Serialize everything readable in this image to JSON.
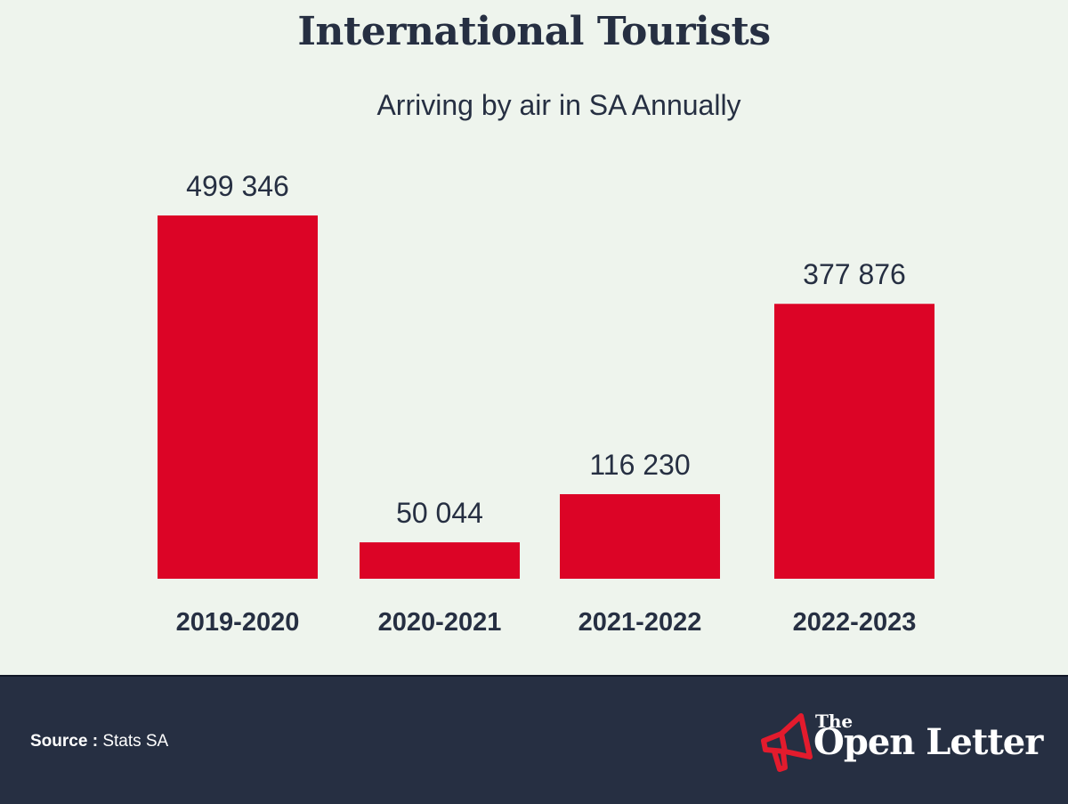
{
  "chart_data": {
    "type": "bar",
    "title": "International Tourists",
    "subtitle": "Arriving by air in SA Annually",
    "categories": [
      "2019-2020",
      "2020-2021",
      "2021-2022",
      "2022-2023"
    ],
    "values": [
      499346,
      50044,
      116230,
      377876
    ],
    "value_labels": [
      "499 346",
      "50 044",
      "116 230",
      "377 876"
    ],
    "xlabel": "",
    "ylabel": "",
    "ylim": [
      0,
      499346
    ],
    "grid": false,
    "legend": "none",
    "colors": {
      "bar": "#dc0426",
      "text": "#262f42",
      "background": "#eef4ed"
    }
  },
  "footer": {
    "source_label": "Source :",
    "source_value": "Stats SA",
    "brand_the": "The",
    "brand_name": "Open Letter",
    "brand_icon": "megaphone-icon",
    "background": "#262f42",
    "icon_color": "#e31b2d"
  }
}
